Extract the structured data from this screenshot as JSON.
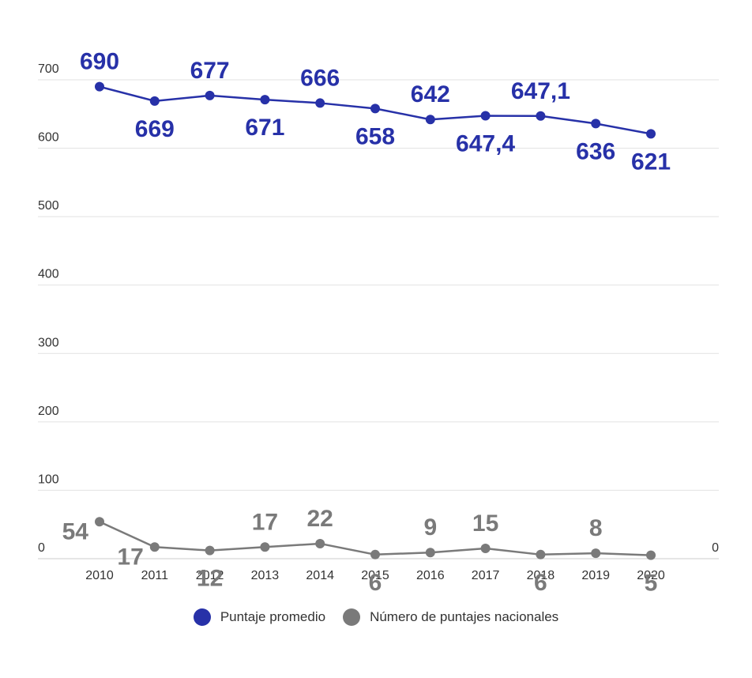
{
  "chart_data": {
    "type": "line",
    "categories": [
      "2010",
      "2011",
      "2012",
      "2013",
      "2014",
      "2015",
      "2016",
      "2017",
      "2018",
      "2019",
      "2020"
    ],
    "yticks_left": [
      "700",
      "600",
      "500",
      "400",
      "300",
      "200",
      "100",
      "0"
    ],
    "yticks_right": [
      "0"
    ],
    "ylim": [
      0,
      700
    ],
    "grid": true,
    "legend_position": "bottom",
    "series": [
      {
        "name": "Puntaje promedio",
        "color": "#2731a8",
        "values": [
          690,
          669,
          677,
          671,
          666,
          658,
          642,
          647.4,
          647.1,
          636,
          621
        ],
        "labels": [
          "690",
          "669",
          "677",
          "671",
          "666",
          "658",
          "642",
          "647,4",
          "647,1",
          "636",
          "621"
        ]
      },
      {
        "name": "Número de puntajes nacionales",
        "color": "#7a7a7a",
        "values": [
          54,
          17,
          12,
          17,
          22,
          6,
          9,
          15,
          6,
          8,
          5
        ],
        "labels": [
          "54",
          "17",
          "12",
          "17",
          "22",
          "6",
          "9",
          "15",
          "6",
          "8",
          "5"
        ]
      }
    ]
  }
}
